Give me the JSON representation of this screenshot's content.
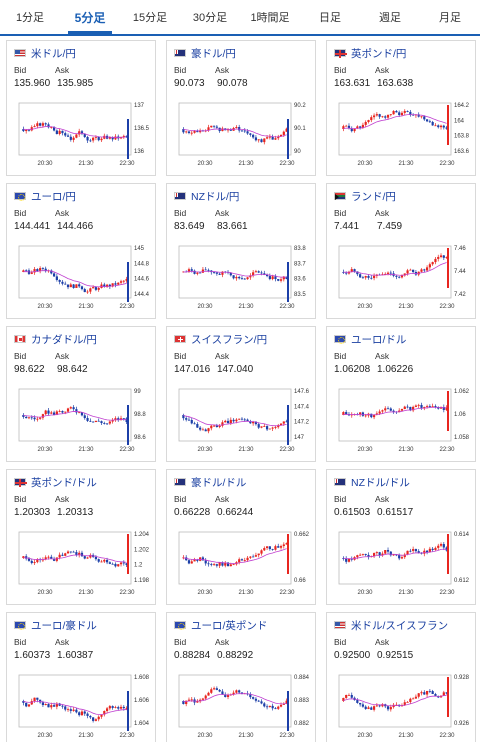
{
  "tabs": [
    "1分足",
    "5分足",
    "15分足",
    "30分足",
    "1時間足",
    "日足",
    "週足",
    "月足"
  ],
  "active_tab": 1,
  "labels": {
    "bid": "Bid",
    "ask": "Ask"
  },
  "pairs": [
    {
      "name": "米ドル/円",
      "flag": "us",
      "bid": "135.960",
      "ask": "135.985",
      "ticks": [
        "137",
        "136.5",
        "136"
      ],
      "times": [
        "20:30",
        "21:30",
        "22:30"
      ]
    },
    {
      "name": "豪ドル/円",
      "flag": "au",
      "bid": "90.073",
      "ask": "90.078",
      "ticks": [
        "90.2",
        "90.1",
        "90"
      ],
      "times": [
        "20:30",
        "21:30",
        "22:30"
      ]
    },
    {
      "name": "英ポンド/円",
      "flag": "gb",
      "bid": "163.631",
      "ask": "163.638",
      "ticks": [
        "164.2",
        "164",
        "163.8",
        "163.6"
      ],
      "times": [
        "20:30",
        "21:30",
        "22:30"
      ]
    },
    {
      "name": "ユーロ/円",
      "flag": "eu",
      "bid": "144.441",
      "ask": "144.466",
      "ticks": [
        "145",
        "144.8",
        "144.6",
        "144.4"
      ],
      "times": [
        "20:30",
        "21:30",
        "22:30"
      ]
    },
    {
      "name": "NZドル/円",
      "flag": "nz",
      "bid": "83.649",
      "ask": "83.661",
      "ticks": [
        "83.8",
        "83.7",
        "83.6",
        "83.5"
      ],
      "times": [
        "20:30",
        "21:30",
        "22:30"
      ]
    },
    {
      "name": "ランド/円",
      "flag": "za",
      "bid": "7.441",
      "ask": "7.459",
      "ticks": [
        "7.46",
        "7.44",
        "7.42"
      ],
      "times": [
        "20:30",
        "21:30",
        "22:30"
      ]
    },
    {
      "name": "カナダドル/円",
      "flag": "ca",
      "bid": "98.622",
      "ask": "98.642",
      "ticks": [
        "99",
        "98.8",
        "98.6"
      ],
      "times": [
        "20:30",
        "21:30",
        "22:30"
      ]
    },
    {
      "name": "スイスフラン/円",
      "flag": "ch",
      "bid": "147.016",
      "ask": "147.040",
      "ticks": [
        "147.6",
        "147.4",
        "147.2",
        "147"
      ],
      "times": [
        "20:30",
        "21:30",
        "22:30"
      ]
    },
    {
      "name": "ユーロ/ドル",
      "flag": "eu",
      "bid": "1.06208",
      "ask": "1.06226",
      "ticks": [
        "1.062",
        "1.06",
        "1.058"
      ],
      "times": [
        "20:30",
        "21:30",
        "22:30"
      ]
    },
    {
      "name": "英ポンド/ドル",
      "flag": "gb",
      "bid": "1.20303",
      "ask": "1.20313",
      "ticks": [
        "1.204",
        "1.202",
        "1.2",
        "1.198"
      ],
      "times": [
        "20:30",
        "21:30",
        "22:30"
      ]
    },
    {
      "name": "豪ドル/ドル",
      "flag": "au",
      "bid": "0.66228",
      "ask": "0.66244",
      "ticks": [
        "0.662",
        "0.66"
      ],
      "times": [
        "20:30",
        "21:30",
        "22:30"
      ]
    },
    {
      "name": "NZドル/ドル",
      "flag": "nz",
      "bid": "0.61503",
      "ask": "0.61517",
      "ticks": [
        "0.614",
        "0.612"
      ],
      "times": [
        "20:30",
        "21:30",
        "22:30"
      ]
    },
    {
      "name": "ユーロ/豪ドル",
      "flag": "eu",
      "bid": "1.60373",
      "ask": "1.60387",
      "ticks": [
        "1.608",
        "1.606",
        "1.604"
      ],
      "times": [
        "20:30",
        "21:30",
        "22:30"
      ]
    },
    {
      "name": "ユーロ/英ポンド",
      "flag": "eu",
      "bid": "0.88284",
      "ask": "0.88292",
      "ticks": [
        "0.884",
        "0.883",
        "0.882"
      ],
      "times": [
        "20:30",
        "21:30",
        "22:30"
      ]
    },
    {
      "name": "米ドル/スイスフラン",
      "flag": "us",
      "bid": "0.92500",
      "ask": "0.92515",
      "ticks": [
        "0.928",
        "0.926"
      ],
      "times": [
        "20:30",
        "21:30",
        "22:30"
      ]
    }
  ],
  "colors": {
    "up": "#e8251f",
    "down": "#1c3fa8",
    "ma": "#c040d0",
    "last": "#1c3fa8"
  }
}
